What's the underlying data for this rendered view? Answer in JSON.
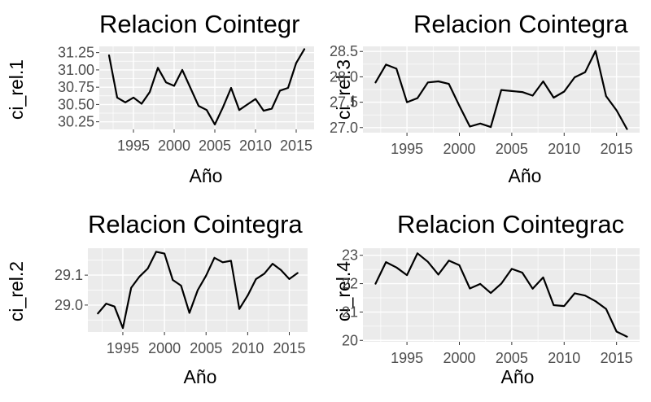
{
  "chart_data": [
    {
      "type": "line",
      "title": "Relacion Cointegr",
      "xlabel": "Año",
      "ylabel": "ci_rel.1",
      "xlim": [
        1990.8,
        2017.2
      ],
      "ylim": [
        30.14,
        31.34
      ],
      "xticks": [
        1995,
        2000,
        2005,
        2010,
        2015
      ],
      "xtick_labels": [
        "1995",
        "2000",
        "2005",
        "2010",
        "2015"
      ],
      "yticks": [
        30.25,
        30.5,
        30.75,
        31.0,
        31.25
      ],
      "ytick_labels": [
        "30.25",
        "30.50",
        "30.75",
        "31.00",
        "31.25"
      ],
      "grid": true,
      "line_color": "#000000",
      "panel_color": "#ebebeb",
      "x": [
        1992,
        1993,
        1994,
        1995,
        1996,
        1997,
        1998,
        1999,
        2000,
        2001,
        2002,
        2003,
        2004,
        2005,
        2006,
        2007,
        2008,
        2009,
        2010,
        2011,
        2012,
        2013,
        2014,
        2015,
        2016
      ],
      "y": [
        31.21,
        30.6,
        30.53,
        30.6,
        30.51,
        30.68,
        31.03,
        30.82,
        30.77,
        31.0,
        30.74,
        30.48,
        30.42,
        30.21,
        30.46,
        30.74,
        30.42,
        30.5,
        30.58,
        30.41,
        30.44,
        30.7,
        30.74,
        31.1,
        31.3
      ]
    },
    {
      "type": "line",
      "title": "Relacion Cointegra",
      "xlabel": "Año",
      "ylabel": "ci_rel.3",
      "xlim": [
        1990.8,
        2017.2
      ],
      "ylim": [
        26.9,
        28.6
      ],
      "xticks": [
        1995,
        2000,
        2005,
        2010,
        2015
      ],
      "xtick_labels": [
        "1995",
        "2000",
        "2005",
        "2010",
        "2015"
      ],
      "yticks": [
        27.0,
        27.5,
        28.0,
        28.5
      ],
      "ytick_labels": [
        "27.0",
        "27.5",
        "28.0",
        "28.5"
      ],
      "grid": true,
      "line_color": "#000000",
      "panel_color": "#ebebeb",
      "x": [
        1992,
        1993,
        1994,
        1995,
        1996,
        1997,
        1998,
        1999,
        2000,
        2001,
        2002,
        2003,
        2004,
        2005,
        2006,
        2007,
        2008,
        2009,
        2010,
        2011,
        2012,
        2013,
        2014,
        2015,
        2016
      ],
      "y": [
        27.89,
        28.24,
        28.16,
        27.5,
        27.58,
        27.89,
        27.91,
        27.86,
        27.43,
        27.02,
        27.08,
        27.01,
        27.74,
        27.72,
        27.7,
        27.63,
        27.91,
        27.59,
        27.71,
        27.99,
        28.09,
        28.51,
        27.62,
        27.34,
        26.97
      ]
    },
    {
      "type": "line",
      "title": "Relacion Cointegra",
      "xlabel": "Año",
      "ylabel": "ci_rel.2",
      "xlim": [
        1990.8,
        2017.2
      ],
      "ylim": [
        28.91,
        29.19
      ],
      "xticks": [
        1995,
        2000,
        2005,
        2010,
        2015
      ],
      "xtick_labels": [
        "1995",
        "2000",
        "2005",
        "2010",
        "2015"
      ],
      "yticks": [
        29.0,
        29.1
      ],
      "ytick_labels": [
        "29.0",
        "29.1"
      ],
      "grid": true,
      "line_color": "#000000",
      "panel_color": "#ebebeb",
      "x": [
        1992,
        1993,
        1994,
        1995,
        1996,
        1997,
        1998,
        1999,
        2000,
        2001,
        2002,
        2003,
        2004,
        2005,
        2006,
        2007,
        2008,
        2009,
        2010,
        2011,
        2012,
        2013,
        2014,
        2015,
        2016
      ],
      "y": [
        28.972,
        29.005,
        28.995,
        28.923,
        29.058,
        29.095,
        29.122,
        29.178,
        29.172,
        29.084,
        29.065,
        28.974,
        29.05,
        29.098,
        29.158,
        29.143,
        29.148,
        28.987,
        29.032,
        29.087,
        29.105,
        29.138,
        29.117,
        29.087,
        29.107
      ]
    },
    {
      "type": "line",
      "title": "Relacion Cointegrac",
      "xlabel": "Año",
      "ylabel": "ci_rel.4",
      "xlim": [
        1990.8,
        2017.2
      ],
      "ylim": [
        19.95,
        23.25
      ],
      "xticks": [
        1995,
        2000,
        2005,
        2010,
        2015
      ],
      "xtick_labels": [
        "1995",
        "2000",
        "2005",
        "2010",
        "2015"
      ],
      "yticks": [
        20,
        21,
        22,
        23
      ],
      "ytick_labels": [
        "20",
        "21",
        "22",
        "23"
      ],
      "grid": true,
      "line_color": "#000000",
      "panel_color": "#ebebeb",
      "x": [
        1992,
        1993,
        1994,
        1995,
        1996,
        1997,
        1998,
        1999,
        2000,
        2001,
        2002,
        2003,
        2004,
        2005,
        2006,
        2007,
        2008,
        2009,
        2010,
        2011,
        2012,
        2013,
        2014,
        2015,
        2016
      ],
      "y": [
        22.0,
        22.76,
        22.57,
        22.3,
        23.07,
        22.77,
        22.32,
        22.81,
        22.65,
        21.83,
        21.99,
        21.67,
        22.0,
        22.52,
        22.39,
        21.82,
        22.22,
        21.24,
        21.21,
        21.66,
        21.58,
        21.38,
        21.11,
        20.31,
        20.13
      ]
    }
  ]
}
